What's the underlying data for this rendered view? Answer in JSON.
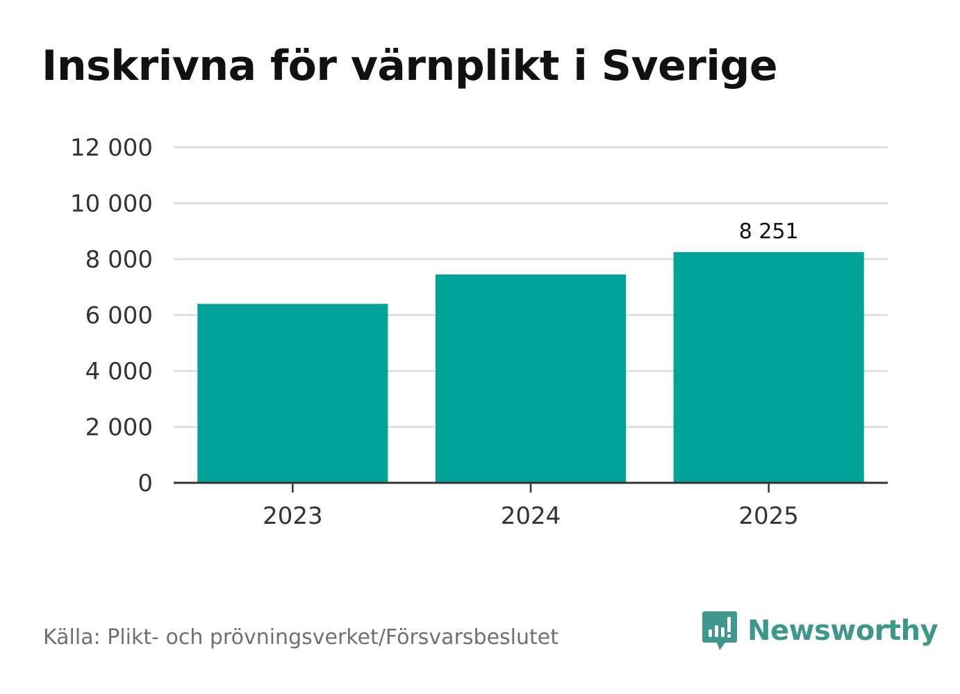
{
  "title": "Inskrivna för värnplikt i Sverige",
  "source": "Källa: Plikt- och prövningsverket/Försvarsbeslutet",
  "brand": {
    "name": "Newsworthy",
    "icon": "newsworthy-logo-icon"
  },
  "colors": {
    "bar": "#00a398",
    "grid": "#d9d9d9",
    "axis": "#333333",
    "brand": "#3e978b"
  },
  "chart_data": {
    "type": "bar",
    "title": "Inskrivna för värnplikt i Sverige",
    "categories": [
      "2023",
      "2024",
      "2025"
    ],
    "values": [
      6400,
      7450,
      8251
    ],
    "data_labels": [
      null,
      null,
      "8 251"
    ],
    "xlabel": "",
    "ylabel": "",
    "ylim": [
      0,
      12000
    ],
    "yticks": [
      0,
      2000,
      4000,
      6000,
      8000,
      10000,
      12000
    ],
    "ytick_labels": [
      "0",
      "2 000",
      "4 000",
      "6 000",
      "8 000",
      "10 000",
      "12 000"
    ],
    "grid": true,
    "legend": "none"
  }
}
